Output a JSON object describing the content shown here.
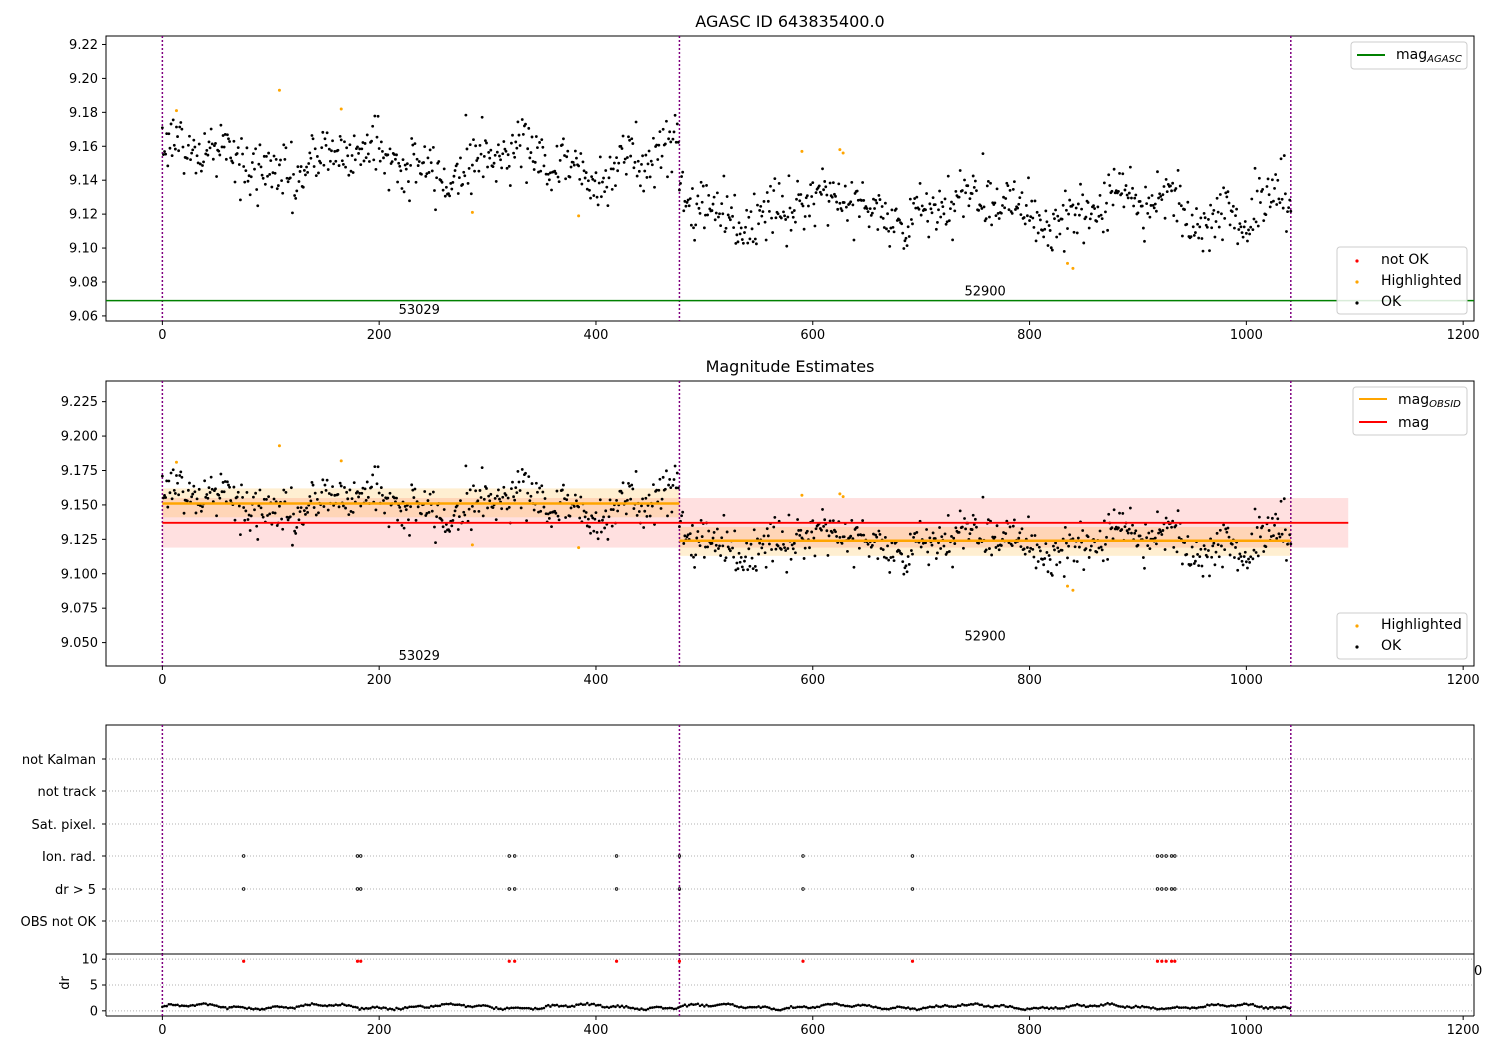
{
  "chart_data": [
    {
      "type": "scatter",
      "title": "AGASC ID 643835400.0",
      "xlim": [
        -52,
        1210
      ],
      "ylim": [
        9.057,
        9.225
      ],
      "x_ticks": [
        "0",
        "200",
        "400",
        "600",
        "800",
        "1000",
        "1200"
      ],
      "y_ticks": [
        "9.06",
        "9.08",
        "9.10",
        "9.12",
        "9.14",
        "9.16",
        "9.18",
        "9.20",
        "9.22"
      ],
      "obs_boundaries": [
        0,
        477,
        1041
      ],
      "obs_labels": [
        {
          "text": "53029",
          "x": 237,
          "y": 9.064
        },
        {
          "text": "52900",
          "x": 759,
          "y": 9.075
        }
      ],
      "reference_lines": [
        {
          "name": "mag_AGASC",
          "value": 9.069,
          "color": "#008000"
        }
      ],
      "segments": [
        {
          "x_start": 0,
          "x_end": 477,
          "level": 9.151
        },
        {
          "x_start": 477,
          "x_end": 1041,
          "level": 9.124
        }
      ],
      "highlighted_points": [
        {
          "x": 13,
          "y": 9.181
        },
        {
          "x": 108,
          "y": 9.193
        },
        {
          "x": 165,
          "y": 9.182
        },
        {
          "x": 286,
          "y": 9.121
        },
        {
          "x": 384,
          "y": 9.119
        },
        {
          "x": 590,
          "y": 9.157
        },
        {
          "x": 625,
          "y": 9.158
        },
        {
          "x": 628,
          "y": 9.156
        },
        {
          "x": 835,
          "y": 9.091
        },
        {
          "x": 840,
          "y": 9.088
        }
      ],
      "legend_top": [
        {
          "label": "mag",
          "sub": "AGASC",
          "color": "#008000",
          "kind": "line"
        }
      ],
      "legend_bottom": [
        {
          "label": "not OK",
          "color": "#ff0000",
          "kind": "marker"
        },
        {
          "label": "Highlighted",
          "color": "#ffa500",
          "kind": "marker"
        },
        {
          "label": "OK",
          "color": "#000000",
          "kind": "marker"
        }
      ]
    },
    {
      "type": "scatter",
      "title": "Magnitude Estimates",
      "xlim": [
        -52,
        1210
      ],
      "ylim": [
        9.033,
        9.24
      ],
      "x_ticks": [
        "0",
        "200",
        "400",
        "600",
        "800",
        "1000",
        "1200"
      ],
      "y_ticks": [
        "9.050",
        "9.075",
        "9.100",
        "9.125",
        "9.150",
        "9.175",
        "9.200",
        "9.225"
      ],
      "obs_boundaries": [
        0,
        477,
        1041
      ],
      "obs_labels": [
        {
          "text": "53029",
          "x": 237,
          "y": 9.041
        },
        {
          "text": "52900",
          "x": 759,
          "y": 9.055
        }
      ],
      "mag": {
        "value": 9.137,
        "band": [
          9.119,
          9.155
        ],
        "x_start": 0,
        "x_end": 1094,
        "color": "#ff0000"
      },
      "mag_obsid": [
        {
          "x_start": 0,
          "x_end": 477,
          "value": 9.151,
          "band": [
            9.141,
            9.162
          ]
        },
        {
          "x_start": 477,
          "x_end": 1041,
          "value": 9.124,
          "band": [
            9.113,
            9.134
          ]
        }
      ],
      "legend_top": [
        {
          "label": "mag",
          "sub": "OBSID",
          "color": "#ffa500",
          "kind": "line"
        },
        {
          "label": "mag",
          "sub": "",
          "color": "#ff0000",
          "kind": "line"
        }
      ],
      "legend_bottom": [
        {
          "label": "Highlighted",
          "color": "#ffa500",
          "kind": "marker"
        },
        {
          "label": "OK",
          "color": "#000000",
          "kind": "marker"
        }
      ]
    },
    {
      "type": "scatter",
      "title": "",
      "categories": [
        "not Kalman",
        "not track",
        "Sat. pixel.",
        "Ion. rad.",
        "dr > 5",
        "OBS not OK"
      ],
      "flag_x": [
        75,
        180,
        183,
        320,
        325,
        419,
        477,
        591,
        692,
        918,
        922,
        926,
        931,
        934
      ],
      "flag_rows": [
        "Ion. rad.",
        "dr > 5"
      ],
      "obs_boundaries": [
        0,
        477,
        1041
      ],
      "xlim": [
        -52,
        1210
      ],
      "x_ticks": [
        "0",
        "200",
        "400",
        "600",
        "800",
        "1000",
        "1200"
      ]
    },
    {
      "type": "scatter",
      "ylabel": "dr",
      "xlim": [
        -52,
        1210
      ],
      "ylim": [
        -1,
        11
      ],
      "y_ticks": [
        "0",
        "5",
        "10"
      ],
      "x_ticks": [
        "0",
        "200",
        "400",
        "600",
        "800",
        "1000",
        "1200"
      ],
      "dr_level": 0.8,
      "dr_flag_value": 9.6,
      "clipped_label": "0"
    }
  ],
  "colors": {
    "ok": "#000000",
    "highlighted": "#ffa500",
    "not_ok": "#ff0000",
    "obs_line": "#800080",
    "grid": "#b0b0b0"
  }
}
